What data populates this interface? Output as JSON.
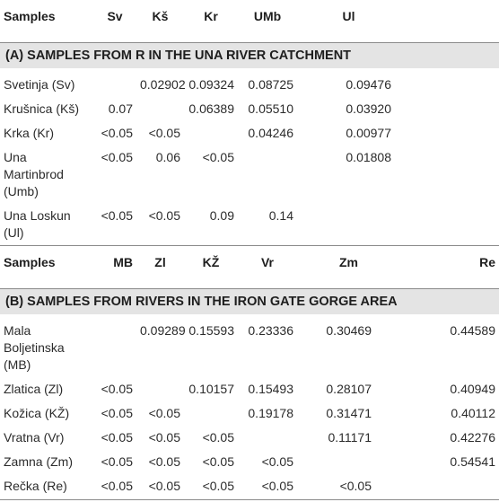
{
  "table_a": {
    "headers": [
      "Samples",
      "Sv",
      "Kš",
      "Kr",
      "UMb",
      "Ul"
    ],
    "section_title": "(A) SAMPLES FROM R IN THE UNA RIVER CATCHMENT",
    "rows": [
      {
        "name": "Svetinja (Sv)",
        "cells": [
          "",
          "0.02902",
          "0.09324",
          "0.08725",
          "0.09476"
        ]
      },
      {
        "name": "Krušnica (Kš)",
        "cells": [
          "0.07",
          "",
          "0.06389",
          "0.05510",
          "0.03920"
        ]
      },
      {
        "name": "Krka (Kr)",
        "cells": [
          "<0.05",
          "<0.05",
          "",
          "0.04246",
          "0.00977"
        ]
      },
      {
        "name": "Una Martinbrod (Umb)",
        "cells": [
          "<0.05",
          "0.06",
          "<0.05",
          "",
          "0.01808"
        ]
      },
      {
        "name": "Una Loskun (Ul)",
        "cells": [
          "<0.05",
          "<0.05",
          "0.09",
          "0.14",
          ""
        ]
      }
    ]
  },
  "table_b": {
    "headers": [
      "Samples",
      "MB",
      "Zl",
      "KŽ",
      "Vr",
      "Zm",
      "Re"
    ],
    "section_title": "(B) SAMPLES FROM RIVERS IN THE IRON GATE GORGE AREA",
    "rows": [
      {
        "name": "Mala Boljetinska (MB)",
        "cells": [
          "",
          "0.09289",
          "0.15593",
          "0.23336",
          "0.30469",
          "0.44589"
        ]
      },
      {
        "name": "Zlatica (Zl)",
        "cells": [
          "<0.05",
          "",
          "0.10157",
          "0.15493",
          "0.28107",
          "0.40949"
        ]
      },
      {
        "name": "Kožica (KŽ)",
        "cells": [
          "<0.05",
          "<0.05",
          "",
          "0.19178",
          "0.31471",
          "0.40112"
        ]
      },
      {
        "name": "Vratna (Vr)",
        "cells": [
          "<0.05",
          "<0.05",
          "<0.05",
          "",
          "0.11171",
          "0.42276"
        ]
      },
      {
        "name": "Zamna (Zm)",
        "cells": [
          "<0.05",
          "<0.05",
          "<0.05",
          "<0.05",
          "",
          "0.54541"
        ]
      },
      {
        "name": "Rečka (Re)",
        "cells": [
          "<0.05",
          "<0.05",
          "<0.05",
          "<0.05",
          "<0.05",
          ""
        ]
      }
    ]
  }
}
